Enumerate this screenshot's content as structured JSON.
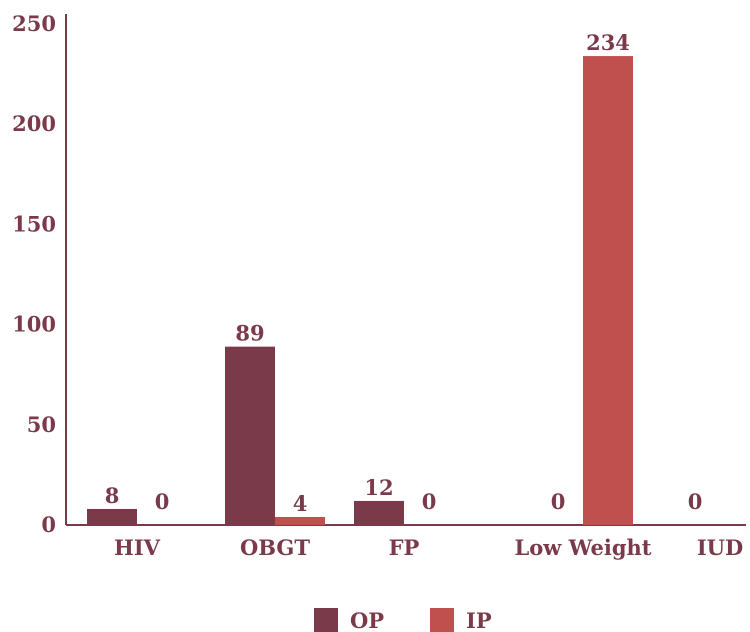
{
  "chart_data": {
    "type": "bar",
    "categories": [
      "HIV",
      "OBGT",
      "FP",
      "Low Weight",
      "IUD"
    ],
    "series": [
      {
        "name": "OP",
        "values": [
          8,
          89,
          12,
          0,
          0
        ],
        "data_labels": [
          "8",
          "89",
          "12",
          "0",
          "0"
        ]
      },
      {
        "name": "IP",
        "values": [
          0,
          4,
          0,
          234,
          null
        ],
        "data_labels": [
          "0",
          "4",
          "0",
          "234",
          ""
        ]
      }
    ],
    "ylim": [
      0,
      250
    ],
    "yticks": [
      "0",
      "50",
      "100",
      "150",
      "200",
      "250"
    ],
    "grid": false,
    "legend_position": "bottom",
    "colors": {
      "OP": "#7b3a4a",
      "IP": "#c0504d",
      "text": "#7b3a4a",
      "axis": "#7b3a4a"
    }
  }
}
